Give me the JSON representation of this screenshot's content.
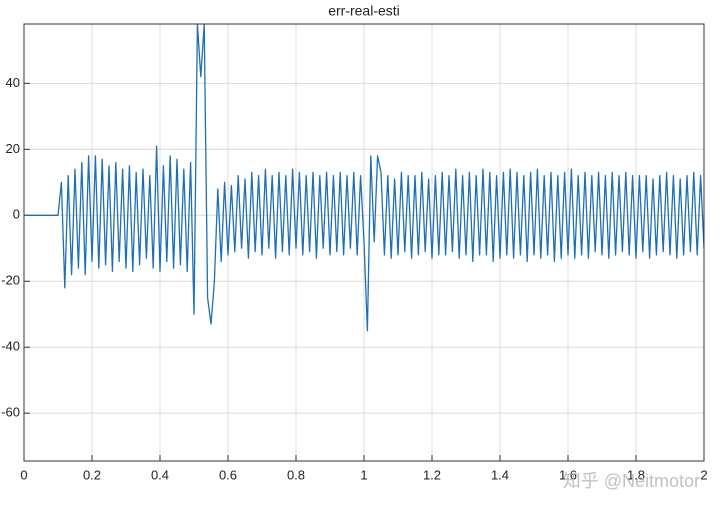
{
  "chart_data": {
    "type": "line",
    "title": "err-real-esti",
    "color": "#1f6fb4",
    "grid": true,
    "xlim": [
      0,
      2
    ],
    "xticks": [
      0,
      0.2,
      0.4,
      0.6,
      0.8,
      1,
      1.2,
      1.4,
      1.6,
      1.8,
      2
    ],
    "ylim": [
      -74.5,
      58
    ],
    "yticks": [
      -60,
      -40,
      -20,
      0,
      20,
      40
    ],
    "watermark": "知乎 @Neitmotor",
    "x": [
      0,
      0.1,
      0.11,
      0.12,
      0.13,
      0.14,
      0.15,
      0.16,
      0.17,
      0.18,
      0.19,
      0.2,
      0.21,
      0.22,
      0.23,
      0.24,
      0.25,
      0.26,
      0.27,
      0.28,
      0.29,
      0.3,
      0.31,
      0.32,
      0.33,
      0.34,
      0.35,
      0.36,
      0.37,
      0.38,
      0.39,
      0.4,
      0.41,
      0.42,
      0.43,
      0.44,
      0.45,
      0.46,
      0.47,
      0.48,
      0.49,
      0.5,
      0.51,
      0.52,
      0.53,
      0.54,
      0.55,
      0.56,
      0.57,
      0.58,
      0.59,
      0.6,
      0.61,
      0.62,
      0.63,
      0.64,
      0.65,
      0.66,
      0.67,
      0.68,
      0.69,
      0.7,
      0.71,
      0.72,
      0.73,
      0.74,
      0.75,
      0.76,
      0.77,
      0.78,
      0.79,
      0.8,
      0.81,
      0.82,
      0.83,
      0.84,
      0.85,
      0.86,
      0.87,
      0.88,
      0.89,
      0.9,
      0.91,
      0.92,
      0.93,
      0.94,
      0.95,
      0.96,
      0.97,
      0.98,
      0.99,
      1,
      1.01,
      1.02,
      1.03,
      1.04,
      1.05,
      1.06,
      1.07,
      1.08,
      1.09,
      1.1,
      1.11,
      1.12,
      1.13,
      1.14,
      1.15,
      1.16,
      1.17,
      1.18,
      1.19,
      1.2,
      1.21,
      1.22,
      1.23,
      1.24,
      1.25,
      1.26,
      1.27,
      1.28,
      1.29,
      1.3,
      1.31,
      1.32,
      1.33,
      1.34,
      1.35,
      1.36,
      1.37,
      1.38,
      1.39,
      1.4,
      1.41,
      1.42,
      1.43,
      1.44,
      1.45,
      1.46,
      1.47,
      1.48,
      1.49,
      1.5,
      1.51,
      1.52,
      1.53,
      1.54,
      1.55,
      1.56,
      1.57,
      1.58,
      1.59,
      1.6,
      1.61,
      1.62,
      1.63,
      1.64,
      1.65,
      1.66,
      1.67,
      1.68,
      1.69,
      1.7,
      1.71,
      1.72,
      1.73,
      1.74,
      1.75,
      1.76,
      1.77,
      1.78,
      1.79,
      1.8,
      1.81,
      1.82,
      1.83,
      1.84,
      1.85,
      1.86,
      1.87,
      1.88,
      1.89,
      1.9,
      1.91,
      1.92,
      1.93,
      1.94,
      1.95,
      1.96,
      1.97,
      1.98,
      1.99,
      2
    ],
    "values": [
      0,
      0,
      10,
      -22,
      12,
      -18,
      14,
      -16,
      16,
      -18,
      18,
      -14,
      18,
      -16,
      17,
      -15,
      15,
      -17,
      16,
      -14,
      14,
      -16,
      15,
      -17,
      13,
      -15,
      14,
      -13,
      12,
      -16,
      21,
      -17,
      15,
      -14,
      18,
      -16,
      17,
      -15,
      14,
      -17,
      16,
      -30,
      58,
      42,
      58,
      -25,
      -33,
      -20,
      8,
      -14,
      10,
      -12,
      9,
      -11,
      12,
      -10,
      11,
      -13,
      13,
      -11,
      12,
      -12,
      14,
      -10,
      12,
      -13,
      13,
      -11,
      12,
      -12,
      14,
      -10,
      13,
      -12,
      12,
      -11,
      13,
      -13,
      12,
      -10,
      13,
      -12,
      12,
      -11,
      13,
      -12,
      12,
      -10,
      13,
      -12,
      12,
      -8,
      -35,
      18,
      -8,
      18,
      13,
      -12,
      12,
      -13,
      11,
      -12,
      13,
      -11,
      12,
      -13,
      12,
      -12,
      13,
      -11,
      11,
      -13,
      12,
      -12,
      13,
      -12,
      12,
      -11,
      14,
      -13,
      12,
      -12,
      13,
      -14,
      12,
      -12,
      14,
      -12,
      13,
      -14,
      12,
      -13,
      13,
      -12,
      14,
      -13,
      13,
      -12,
      12,
      -14,
      13,
      -12,
      14,
      -13,
      12,
      -12,
      13,
      -14,
      12,
      -13,
      13,
      -12,
      14,
      -13,
      12,
      -12,
      13,
      -13,
      12,
      -11,
      13,
      -12,
      12,
      -13,
      13,
      -12,
      12,
      -11,
      13,
      -12,
      12,
      -13,
      12,
      -11,
      12,
      -13,
      11,
      -12,
      12,
      -11,
      13,
      -12,
      12,
      -13,
      11,
      -12,
      12,
      -11,
      13,
      -12,
      12,
      -10
    ]
  }
}
